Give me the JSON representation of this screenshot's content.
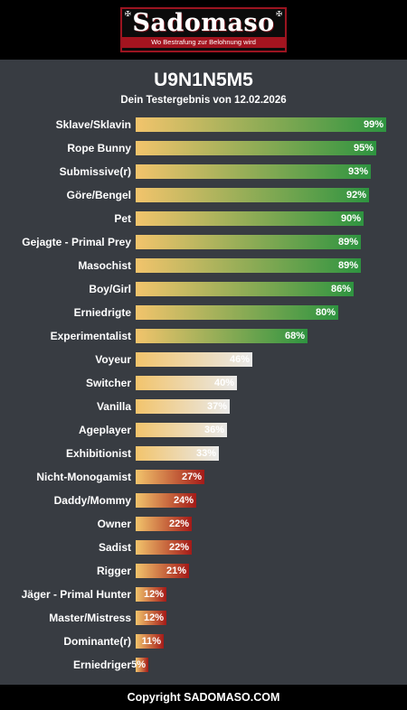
{
  "header": {
    "logo_text": "Sadomaso",
    "logo_tagline": "Wo Bestrafung zur Belohnung wird",
    "logo_corner_icon": "cross-pattee-icon"
  },
  "result": {
    "title": "U9N1N5M5",
    "subtitle": "Dein Testergebnis von 12.02.2026"
  },
  "colors": {
    "bar_start": "#f2c46c",
    "high_end": "#2e9440",
    "mid_end": "#e9e9e9",
    "low_end": "#a41a18"
  },
  "chart_data": {
    "type": "bar",
    "orientation": "horizontal",
    "xlim": [
      0,
      100
    ],
    "categories": [
      "Sklave/Sklavin",
      "Rope Bunny",
      "Submissive(r)",
      "Göre/Bengel",
      "Pet",
      "Gejagte - Primal Prey",
      "Masochist",
      "Boy/Girl",
      "Erniedrigte",
      "Experimentalist",
      "Voyeur",
      "Switcher",
      "Vanilla",
      "Ageplayer",
      "Exhibitionist",
      "Nicht-Monogamist",
      "Daddy/Mommy",
      "Owner",
      "Sadist",
      "Rigger",
      "Jäger - Primal Hunter",
      "Master/Mistress",
      "Dominante(r)",
      "Erniedriger"
    ],
    "values": [
      99,
      95,
      93,
      92,
      90,
      89,
      89,
      86,
      80,
      68,
      46,
      40,
      37,
      36,
      33,
      27,
      24,
      22,
      22,
      21,
      12,
      12,
      11,
      5
    ],
    "value_labels": [
      "99%",
      "95%",
      "93%",
      "92%",
      "90%",
      "89%",
      "89%",
      "86%",
      "80%",
      "68%",
      "46%",
      "40%",
      "37%",
      "36%",
      "33%",
      "27%",
      "24%",
      "22%",
      "22%",
      "21%",
      "12%",
      "12%",
      "11%",
      "5%"
    ]
  },
  "footer": {
    "copyright": "Copyright SADOMASO.COM"
  }
}
